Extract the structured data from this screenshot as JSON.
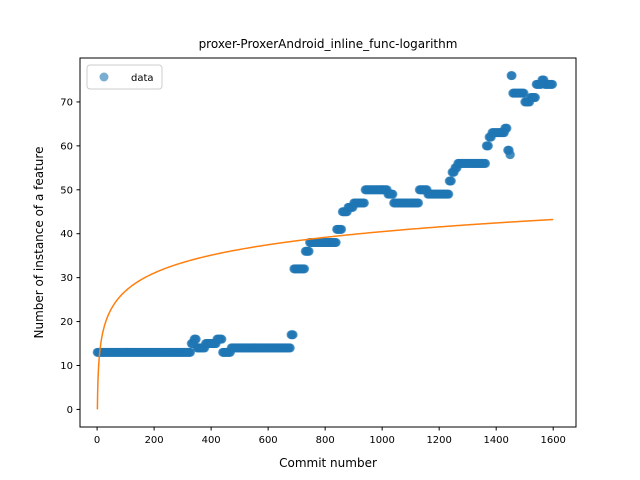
{
  "chart_data": {
    "type": "scatter",
    "title": "proxer-ProxerAndroid_inline_func-logarithm",
    "xlabel": "Commit number",
    "ylabel": "Number of instance of a feature",
    "xlim": [
      -60,
      1680
    ],
    "ylim": [
      -4,
      80
    ],
    "xticks": [
      0,
      200,
      400,
      600,
      800,
      1000,
      1200,
      1400,
      1600
    ],
    "yticks": [
      0,
      10,
      20,
      30,
      40,
      50,
      60,
      70
    ],
    "legend": {
      "position": "top-left",
      "entries": [
        "data"
      ]
    },
    "colors": {
      "data": "#1f77b4",
      "fit": "#ff7f0e"
    },
    "series": [
      {
        "name": "data",
        "kind": "scatter",
        "segments": [
          [
            0,
            330,
            13
          ],
          [
            330,
            340,
            15
          ],
          [
            340,
            350,
            16
          ],
          [
            350,
            380,
            14
          ],
          [
            380,
            420,
            15
          ],
          [
            420,
            440,
            16
          ],
          [
            440,
            470,
            13
          ],
          [
            470,
            680,
            14
          ],
          [
            680,
            690,
            17
          ],
          [
            690,
            730,
            32
          ],
          [
            730,
            745,
            36
          ],
          [
            745,
            840,
            38
          ],
          [
            840,
            860,
            41
          ],
          [
            860,
            880,
            45
          ],
          [
            880,
            900,
            46
          ],
          [
            900,
            940,
            47
          ],
          [
            940,
            1020,
            50
          ],
          [
            1020,
            1040,
            49
          ],
          [
            1040,
            1130,
            47
          ],
          [
            1130,
            1160,
            50
          ],
          [
            1160,
            1235,
            49
          ],
          [
            1235,
            1245,
            52
          ],
          [
            1245,
            1255,
            54
          ],
          [
            1255,
            1265,
            55
          ],
          [
            1265,
            1365,
            56
          ],
          [
            1365,
            1375,
            60
          ],
          [
            1375,
            1385,
            62
          ],
          [
            1385,
            1430,
            63
          ],
          [
            1430,
            1440,
            64
          ],
          [
            1440,
            1448,
            59
          ],
          [
            1448,
            1452,
            58
          ],
          [
            1452,
            1458,
            76
          ],
          [
            1458,
            1500,
            72
          ],
          [
            1500,
            1520,
            70
          ],
          [
            1520,
            1540,
            71
          ],
          [
            1540,
            1560,
            74
          ],
          [
            1560,
            1570,
            75
          ],
          [
            1570,
            1600,
            74
          ]
        ]
      },
      {
        "kind": "line",
        "model": "logarithm",
        "x_range": [
          1,
          1600
        ],
        "a": 5.86,
        "b": 0
      }
    ]
  }
}
